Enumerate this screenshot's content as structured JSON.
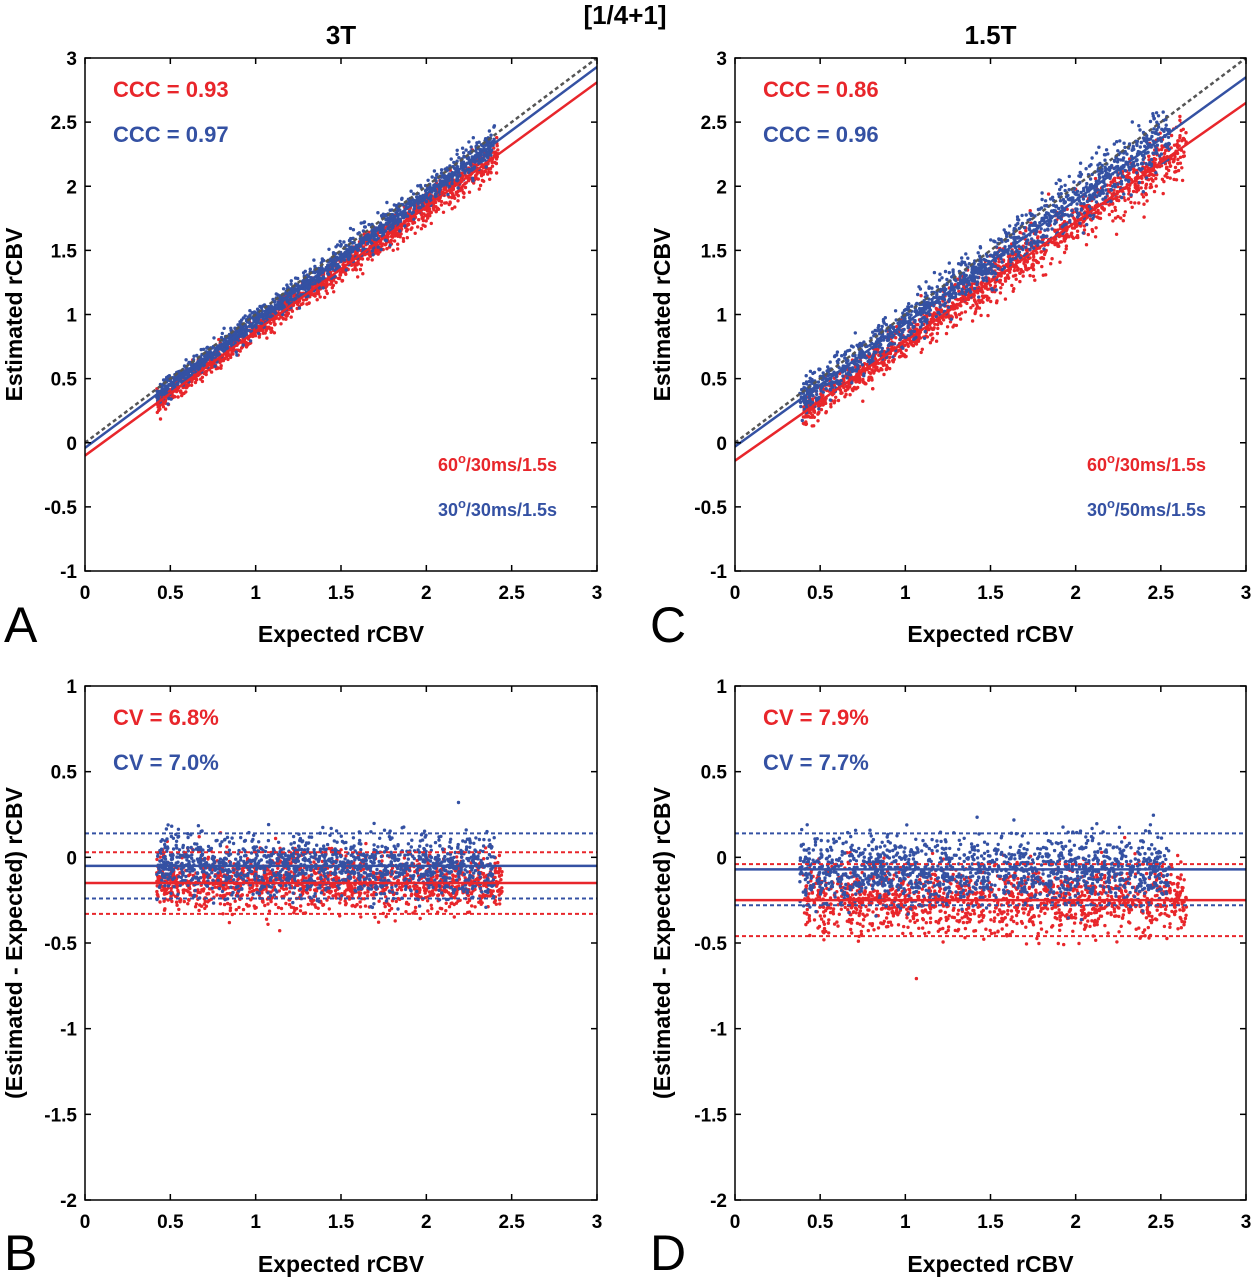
{
  "figure_title": "[1/4+1]",
  "colors": {
    "red": "#e8262b",
    "blue": "#3451a3",
    "identity": "#555555",
    "axis": "#000000"
  },
  "chart_data": [
    {
      "id": "A",
      "panel_letter": "A",
      "type": "scatter",
      "title": "3T",
      "xlabel": "Expected rCBV",
      "ylabel": "Estimated  rCBV",
      "xlim": [
        0,
        3
      ],
      "ylim": [
        -1,
        3
      ],
      "xticks": [
        "0",
        "0.5",
        "1",
        "1.5",
        "2",
        "2.5",
        "3"
      ],
      "yticks": [
        "-1",
        "-0.5",
        "0",
        "0.5",
        "1",
        "1.5",
        "2",
        "2.5",
        "3"
      ],
      "grid": false,
      "stats": [
        {
          "text": "CCC = 0.93",
          "color": "red"
        },
        {
          "text": "CCC = 0.97",
          "color": "blue"
        }
      ],
      "legend": [
        {
          "text": "60",
          "sup": "o",
          "rest": "/30ms/1.5s",
          "color": "red"
        },
        {
          "text": "30",
          "sup": "o",
          "rest": "/30ms/1.5s",
          "color": "blue"
        }
      ],
      "identity_line": {
        "from": [
          0,
          0
        ],
        "to": [
          3,
          3
        ]
      },
      "series": [
        {
          "color": "red",
          "fit": {
            "slope": 0.97,
            "intercept": -0.1
          },
          "x_range": [
            0.42,
            2.42
          ],
          "noise": 0.06
        },
        {
          "color": "blue",
          "fit": {
            "slope": 0.99,
            "intercept": -0.04
          },
          "x_range": [
            0.42,
            2.4
          ],
          "noise": 0.06
        }
      ]
    },
    {
      "id": "C",
      "panel_letter": "C",
      "type": "scatter",
      "title": "1.5T",
      "xlabel": "Expected rCBV",
      "ylabel": "Estimated  rCBV",
      "xlim": [
        0,
        3
      ],
      "ylim": [
        -1,
        3
      ],
      "xticks": [
        "0",
        "0.5",
        "1",
        "1.5",
        "2",
        "2.5",
        "3"
      ],
      "yticks": [
        "-1",
        "-0.5",
        "0",
        "0.5",
        "1",
        "1.5",
        "2",
        "2.5",
        "3"
      ],
      "grid": false,
      "stats": [
        {
          "text": "CCC = 0.86",
          "color": "red"
        },
        {
          "text": "CCC = 0.96",
          "color": "blue"
        }
      ],
      "legend": [
        {
          "text": "60",
          "sup": "o",
          "rest": "/30ms/1.5s",
          "color": "red"
        },
        {
          "text": "30",
          "sup": "o",
          "rest": "/50ms/1.5s",
          "color": "blue"
        }
      ],
      "identity_line": {
        "from": [
          0,
          0
        ],
        "to": [
          3,
          3
        ]
      },
      "series": [
        {
          "color": "red",
          "fit": {
            "slope": 0.93,
            "intercept": -0.14
          },
          "x_range": [
            0.4,
            2.65
          ],
          "noise": 0.1
        },
        {
          "color": "blue",
          "fit": {
            "slope": 0.96,
            "intercept": -0.03
          },
          "x_range": [
            0.38,
            2.55
          ],
          "noise": 0.1
        }
      ]
    },
    {
      "id": "B",
      "panel_letter": "B",
      "type": "scatter",
      "title": "",
      "xlabel": "Expected rCBV",
      "ylabel": "(Estimated - Expected) rCBV",
      "xlim": [
        0,
        3
      ],
      "ylim": [
        -2,
        1
      ],
      "xticks": [
        "0",
        "0.5",
        "1",
        "1.5",
        "2",
        "2.5",
        "3"
      ],
      "yticks": [
        "-2",
        "-1.5",
        "-1",
        "-0.5",
        "0",
        "0.5",
        "1"
      ],
      "grid": false,
      "stats": [
        {
          "text": "CV = 6.8%",
          "color": "red"
        },
        {
          "text": "CV = 7.0%",
          "color": "blue"
        }
      ],
      "legend": [],
      "series": [
        {
          "color": "red",
          "mean": -0.15,
          "loa": [
            -0.33,
            0.03
          ],
          "x_range": [
            0.42,
            2.45
          ],
          "noise": 0.08
        },
        {
          "color": "blue",
          "mean": -0.05,
          "loa": [
            -0.24,
            0.14
          ],
          "x_range": [
            0.42,
            2.4
          ],
          "noise": 0.08
        }
      ]
    },
    {
      "id": "D",
      "panel_letter": "D",
      "type": "scatter",
      "title": "",
      "xlabel": "Expected rCBV",
      "ylabel": "(Estimated - Expected) rCBV",
      "xlim": [
        0,
        3
      ],
      "ylim": [
        -2,
        1
      ],
      "xticks": [
        "0",
        "0.5",
        "1",
        "1.5",
        "2",
        "2.5",
        "3"
      ],
      "yticks": [
        "-2",
        "-1.5",
        "-1",
        "-0.5",
        "0",
        "0.5",
        "1"
      ],
      "grid": false,
      "stats": [
        {
          "text": "CV = 7.9%",
          "color": "red"
        },
        {
          "text": "CV = 7.7%",
          "color": "blue"
        }
      ],
      "legend": [],
      "series": [
        {
          "color": "red",
          "mean": -0.25,
          "loa": [
            -0.46,
            -0.04
          ],
          "x_range": [
            0.4,
            2.65
          ],
          "noise": 0.1
        },
        {
          "color": "blue",
          "mean": -0.07,
          "loa": [
            -0.28,
            0.14
          ],
          "x_range": [
            0.38,
            2.55
          ],
          "noise": 0.1
        }
      ]
    }
  ]
}
